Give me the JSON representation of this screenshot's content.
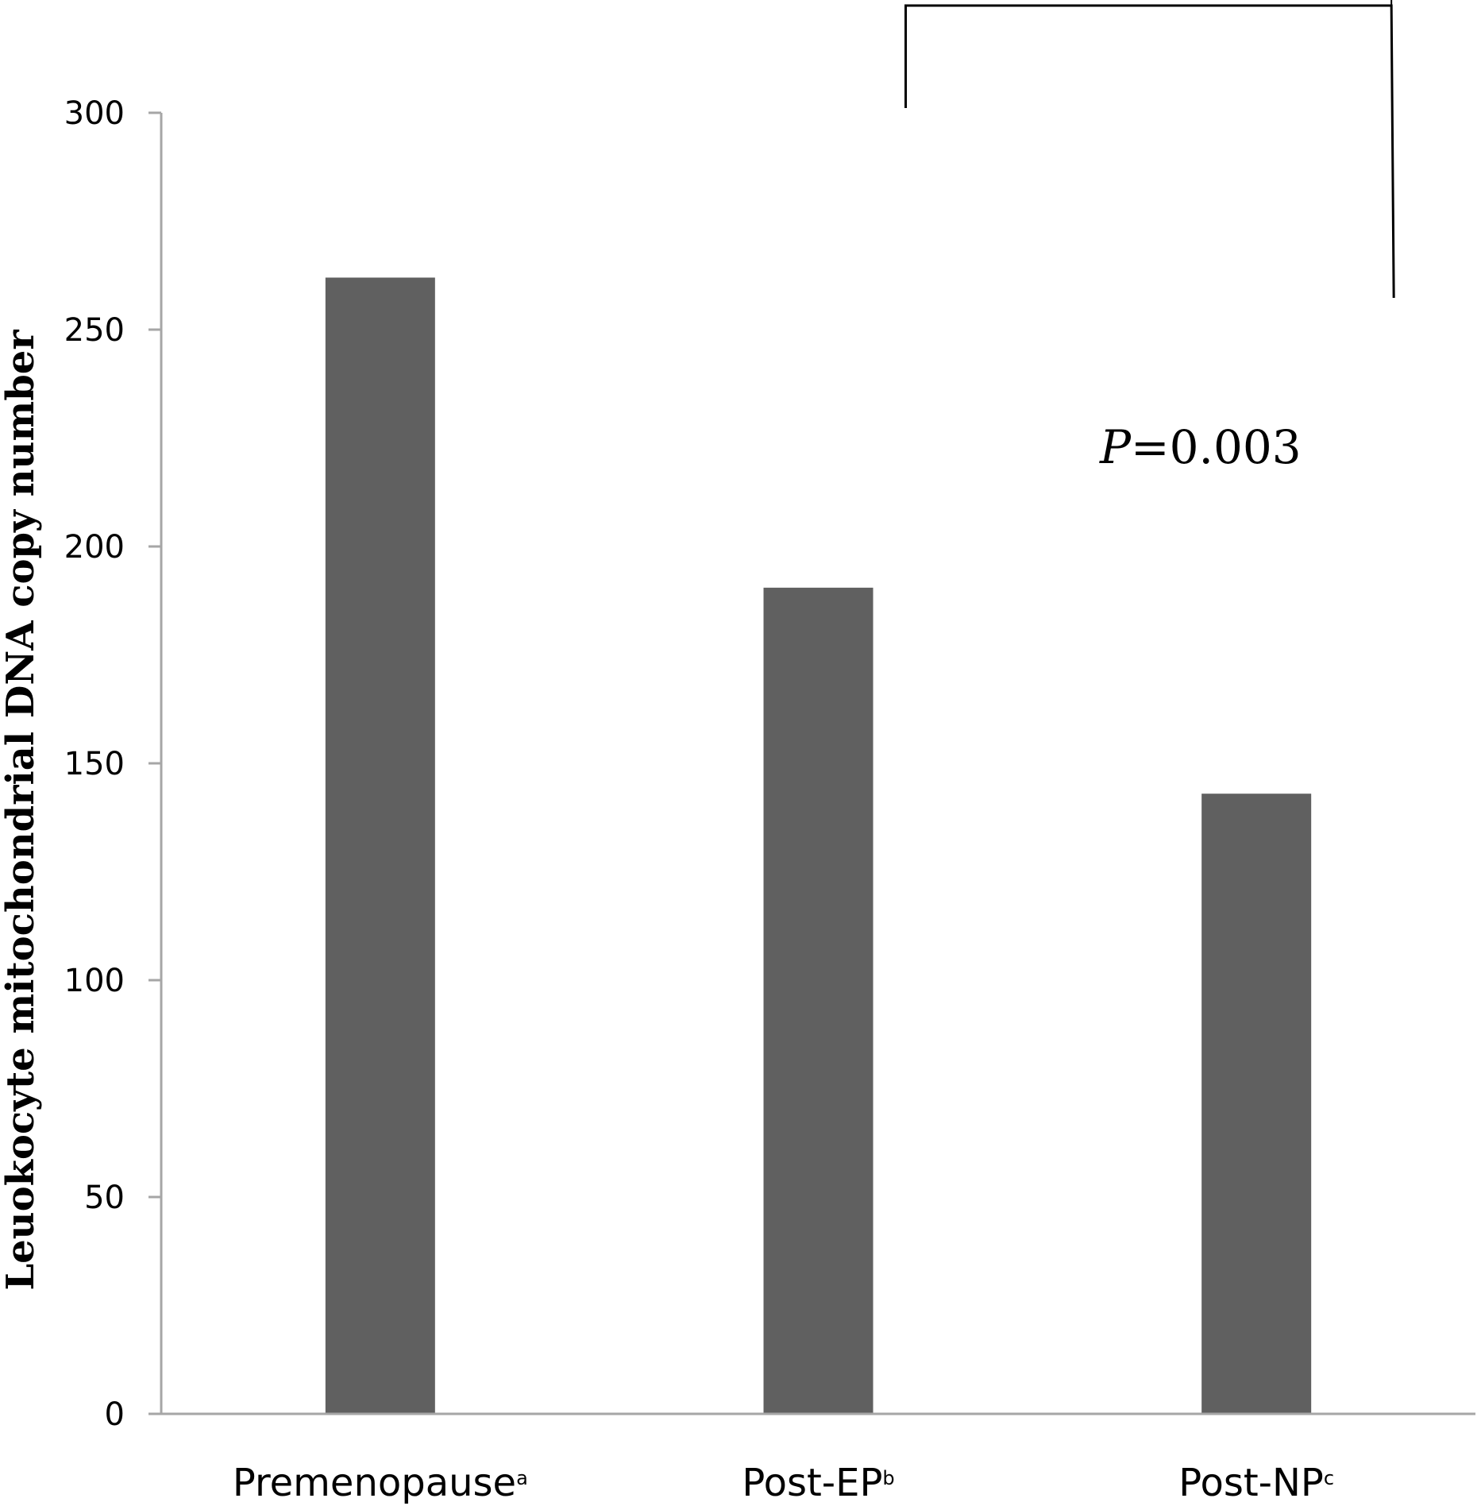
{
  "chart_data": {
    "type": "bar",
    "categories": [
      {
        "label": "Premenopause",
        "superscript": "a"
      },
      {
        "label": "Post-EP",
        "superscript": "b"
      },
      {
        "label": "Post-NP",
        "superscript": "c"
      }
    ],
    "values": [
      262,
      190.5,
      143
    ],
    "xlabel": "",
    "ylabel": "Leuokocyte mitochondrial DNA copy number",
    "ylim": [
      0,
      300
    ],
    "yticks": [
      0,
      50,
      100,
      150,
      200,
      250,
      300
    ],
    "grid": false,
    "bar_color": "#606060",
    "axis_color": "#a6a6a6",
    "annotation": {
      "p_label": "P",
      "p_value": "=0.003",
      "bracket_between": [
        "Post-EP",
        "Post-NP"
      ]
    }
  }
}
